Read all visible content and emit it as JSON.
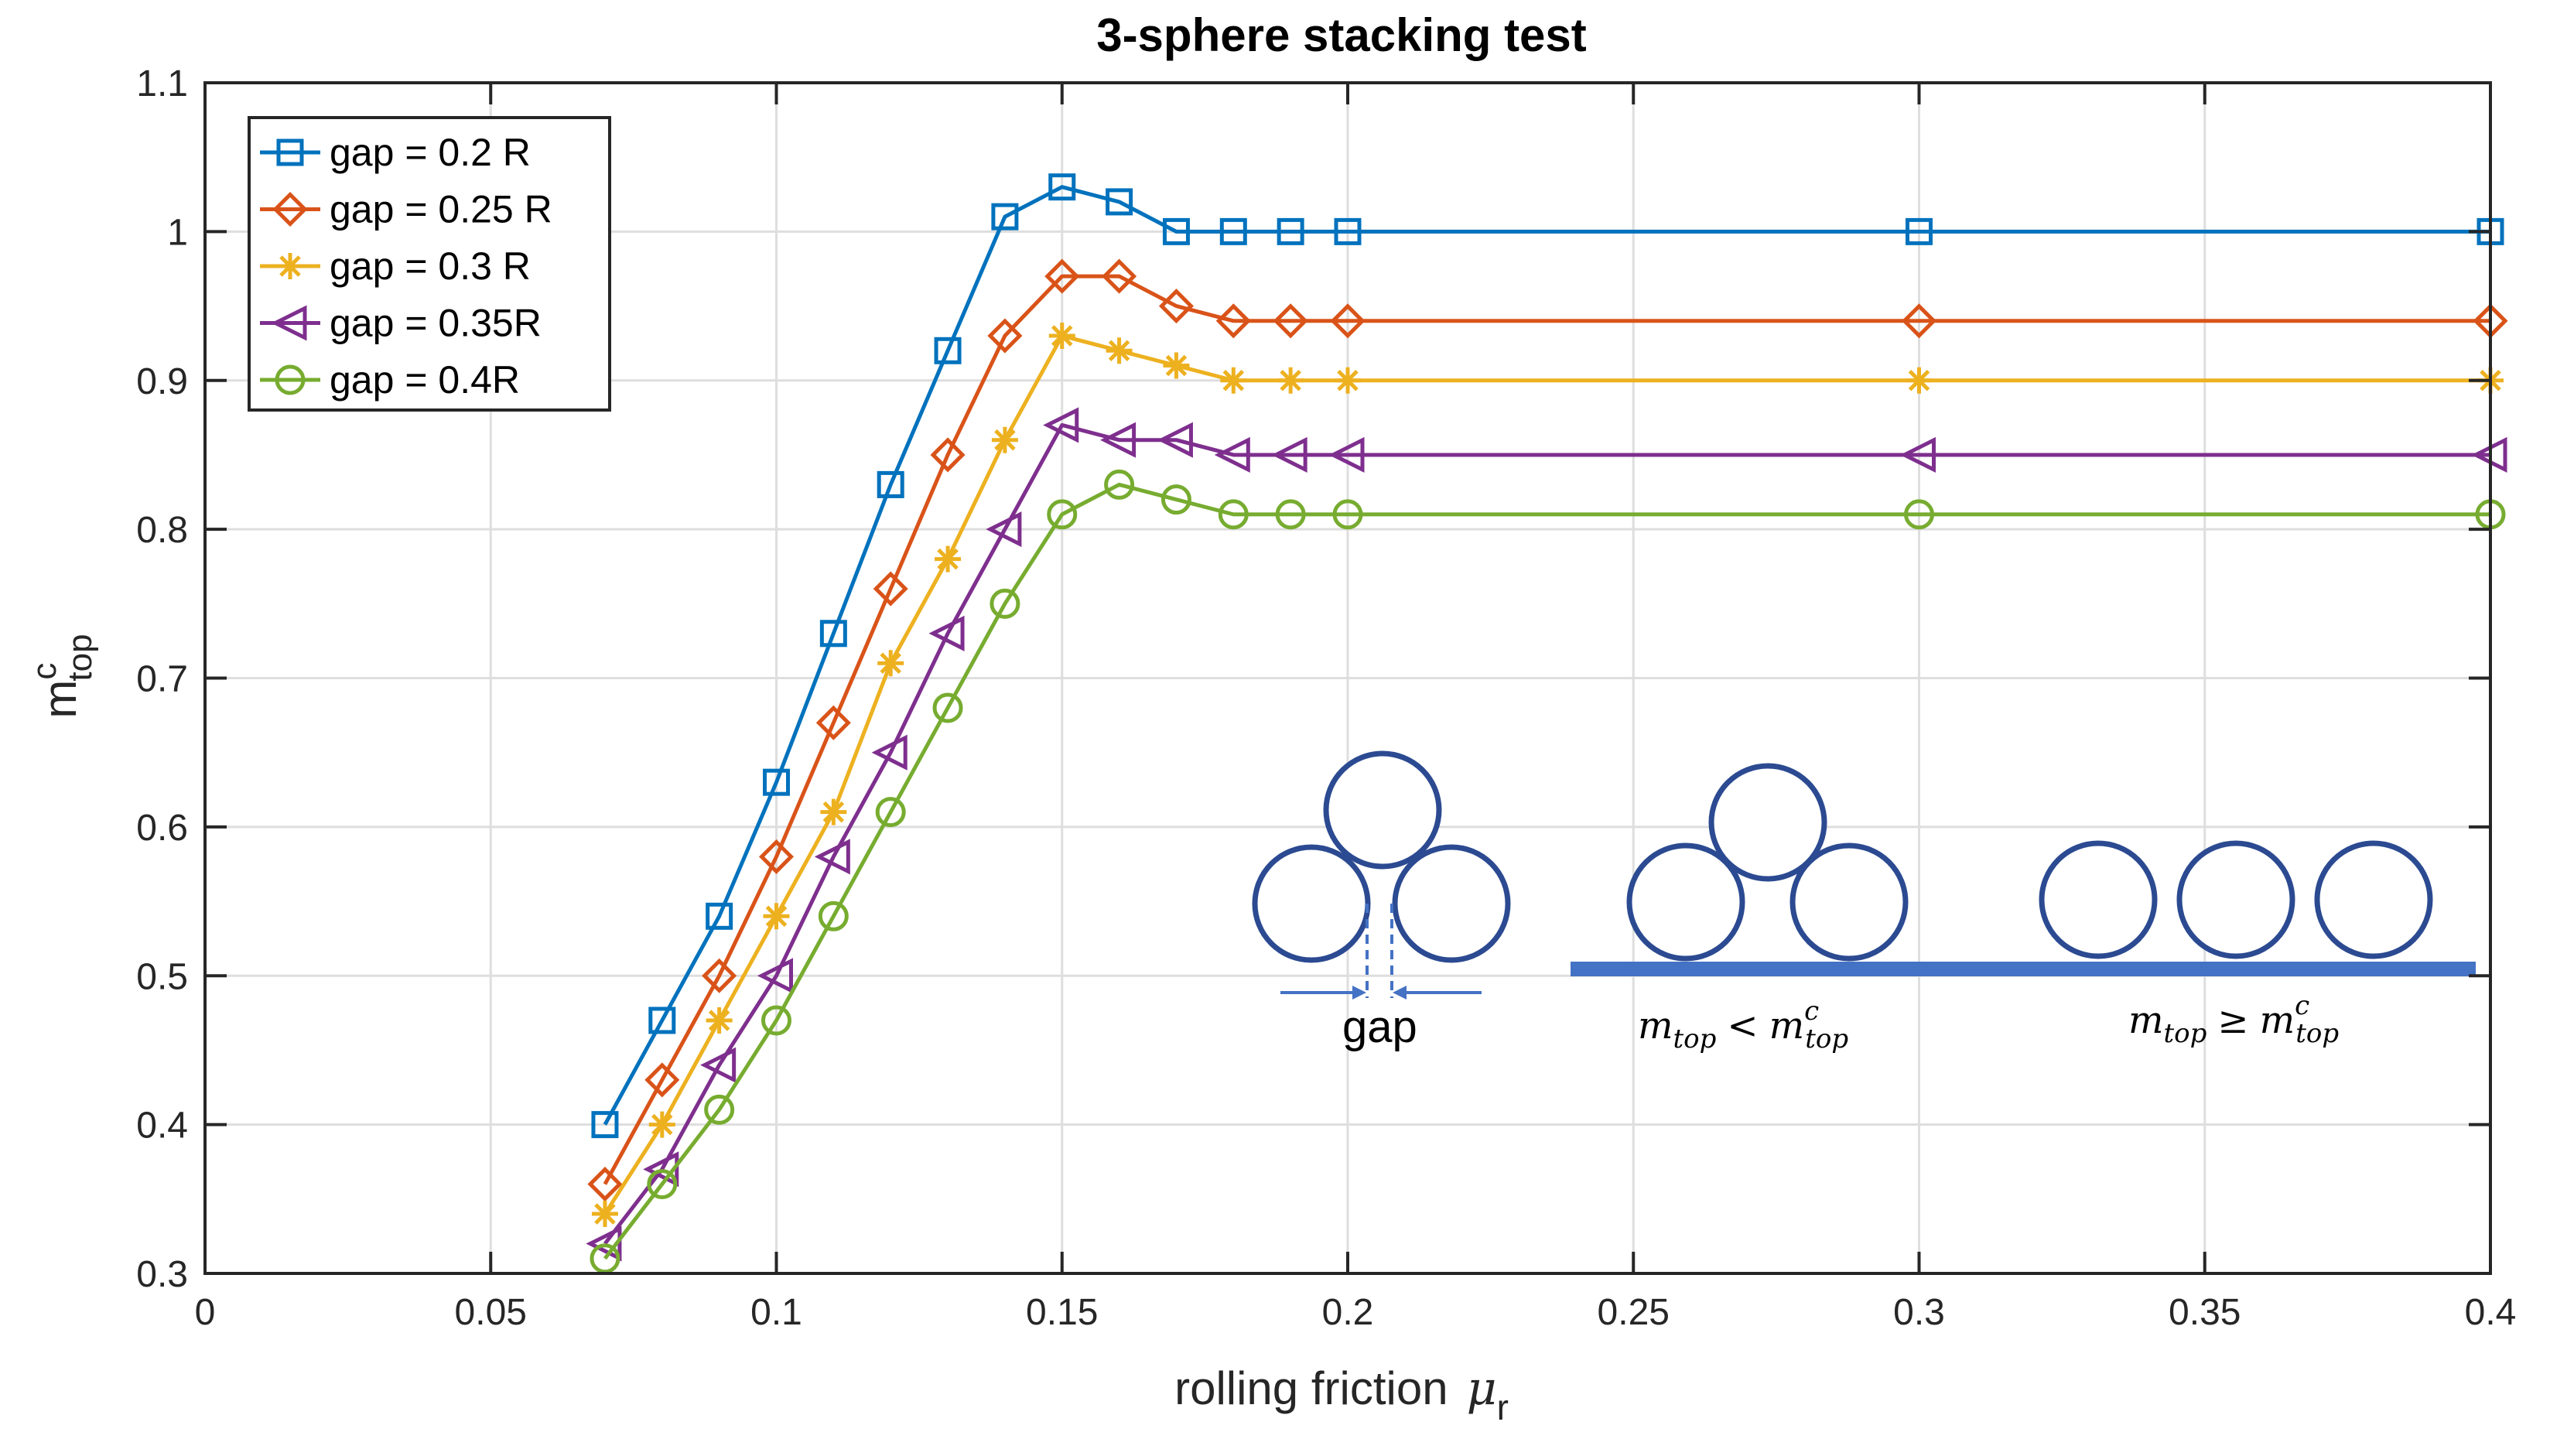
{
  "chart_data": {
    "type": "line",
    "title": "3-sphere stacking test",
    "xlabel": "rolling friction",
    "xlabel_symbol": "μ",
    "xlabel_symbol_sub": "r",
    "ylabel": "m",
    "ylabel_sup": "c",
    "ylabel_sub": "top",
    "xlim": [
      0,
      0.4
    ],
    "ylim": [
      0.3,
      1.1
    ],
    "xticks": [
      0,
      0.05,
      0.1,
      0.15,
      0.2,
      0.25,
      0.3,
      0.35,
      0.4
    ],
    "xtick_labels": [
      "0",
      "0.05",
      "0.1",
      "0.15",
      "0.2",
      "0.25",
      "0.3",
      "0.35",
      "0.4"
    ],
    "yticks": [
      0.3,
      0.4,
      0.5,
      0.6,
      0.7,
      0.8,
      0.9,
      1.0,
      1.1
    ],
    "ytick_labels": [
      "0.3",
      "0.4",
      "0.5",
      "0.6",
      "0.7",
      "0.8",
      "0.9",
      "1",
      "1.1"
    ],
    "grid": true,
    "legend_position": "top-left",
    "x": [
      0.07,
      0.08,
      0.09,
      0.1,
      0.11,
      0.12,
      0.13,
      0.14,
      0.15,
      0.16,
      0.17,
      0.18,
      0.19,
      0.2,
      0.3,
      0.4
    ],
    "series": [
      {
        "name": "gap = 0.2 R",
        "color": "#0072BD",
        "marker": "square",
        "values": [
          0.4,
          0.47,
          0.54,
          0.63,
          0.73,
          0.83,
          0.92,
          1.01,
          1.03,
          1.02,
          1.0,
          1.0,
          1.0,
          1.0,
          1.0,
          1.0
        ]
      },
      {
        "name": "gap = 0.25 R",
        "color": "#D95319",
        "marker": "diamond",
        "values": [
          0.36,
          0.43,
          0.5,
          0.58,
          0.67,
          0.76,
          0.85,
          0.93,
          0.97,
          0.97,
          0.95,
          0.94,
          0.94,
          0.94,
          0.94,
          0.94
        ]
      },
      {
        "name": "gap = 0.3 R",
        "color": "#EDB120",
        "marker": "asterisk",
        "values": [
          0.34,
          0.4,
          0.47,
          0.54,
          0.61,
          0.71,
          0.78,
          0.86,
          0.93,
          0.92,
          0.91,
          0.9,
          0.9,
          0.9,
          0.9,
          0.9
        ]
      },
      {
        "name": "gap = 0.35R",
        "color": "#7E2F8E",
        "marker": "triangle-left",
        "values": [
          0.32,
          0.37,
          0.44,
          0.5,
          0.58,
          0.65,
          0.73,
          0.8,
          0.87,
          0.86,
          0.86,
          0.85,
          0.85,
          0.85,
          0.85,
          0.85
        ]
      },
      {
        "name": "gap = 0.4R",
        "color": "#77AC30",
        "marker": "circle",
        "values": [
          0.31,
          0.36,
          0.41,
          0.47,
          0.54,
          0.61,
          0.68,
          0.75,
          0.81,
          0.83,
          0.82,
          0.81,
          0.81,
          0.81,
          0.81,
          0.81
        ]
      }
    ],
    "inset": {
      "gap_label": "gap",
      "ineq_less": {
        "lhs": "m",
        "lhs_sub": "top",
        "op": "<",
        "rhs": "m",
        "rhs_sub": "top",
        "rhs_sup": "c"
      },
      "ineq_geq": {
        "lhs": "m",
        "lhs_sub": "top",
        "op": "≥",
        "rhs": "m",
        "rhs_sub": "top",
        "rhs_sup": "c"
      },
      "sphere_color": "#2B4A91",
      "floor_color": "#4472C4"
    }
  }
}
